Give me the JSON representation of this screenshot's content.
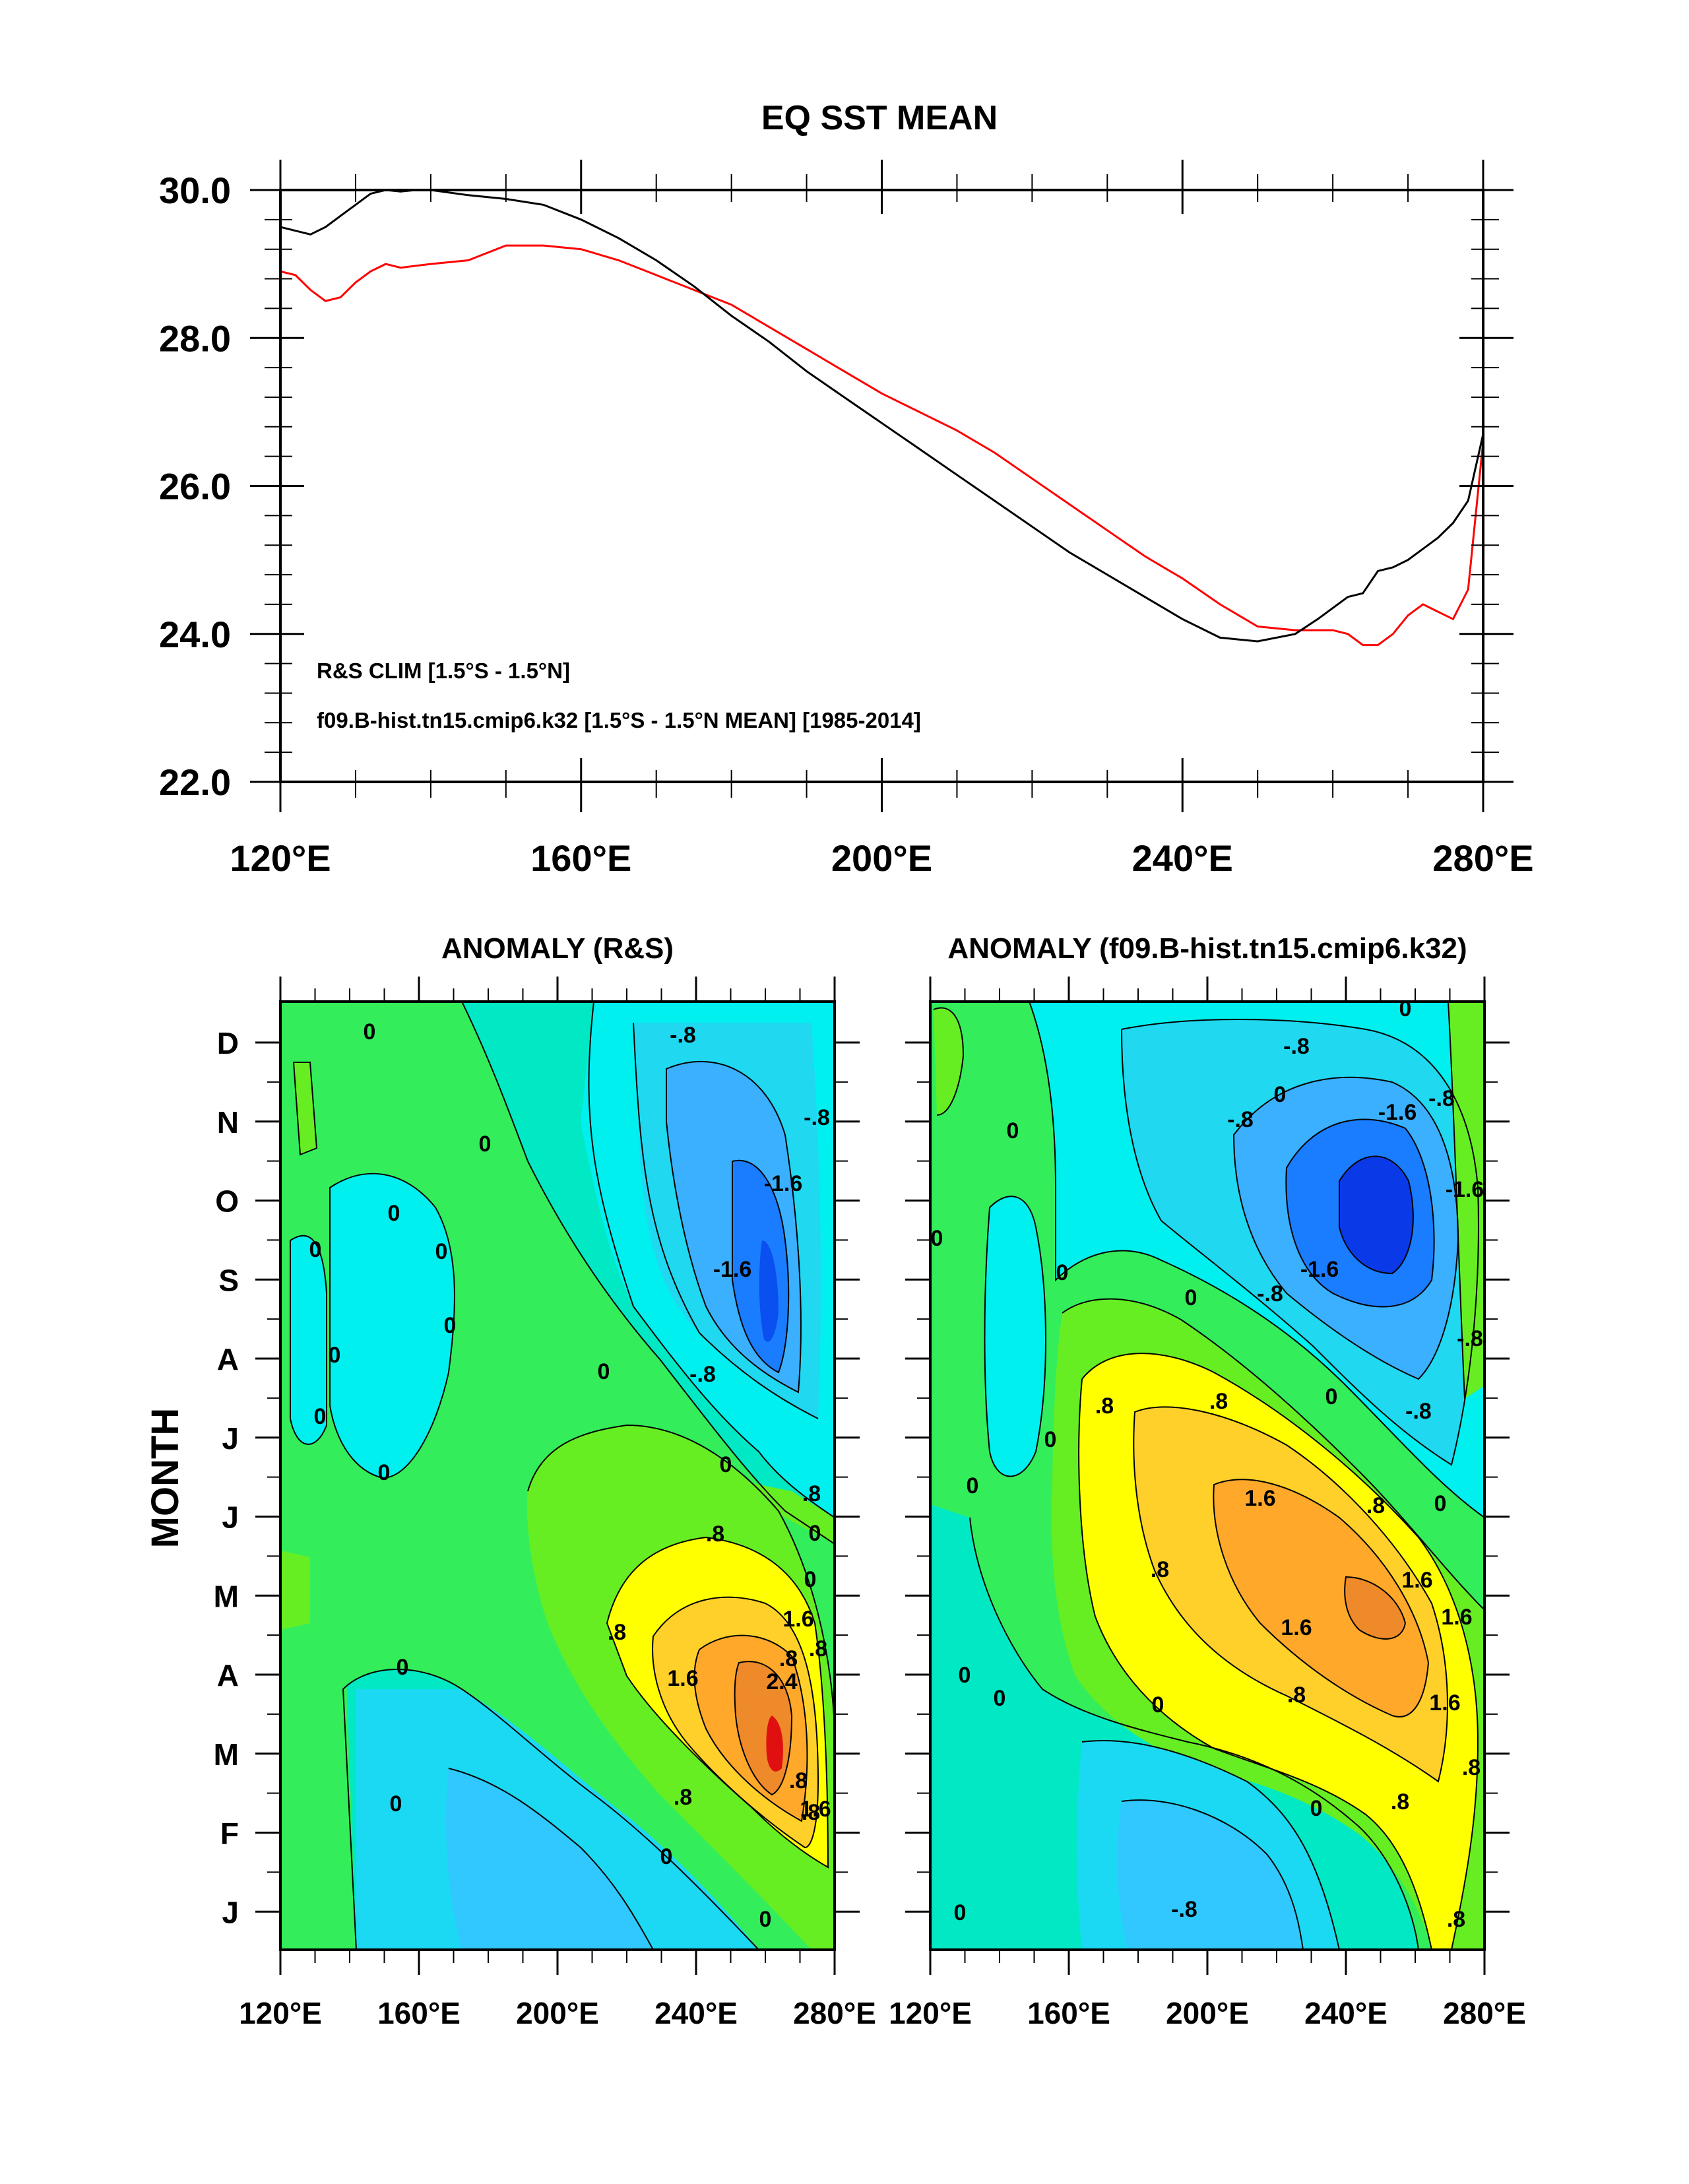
{
  "figure_title": "EQ SST MEAN",
  "chart_data": [
    {
      "type": "line",
      "title": "EQ SST MEAN",
      "xlabel": "",
      "ylabel": "",
      "xlim": [
        120,
        280
      ],
      "ylim": [
        22,
        30
      ],
      "x_tick_labels": [
        "120°E",
        "160°E",
        "200°E",
        "240°E",
        "280°E"
      ],
      "x_ticks": [
        120,
        160,
        200,
        240,
        280
      ],
      "y_tick_labels": [
        "30.0",
        "28.0",
        "26.0",
        "24.0",
        "22.0"
      ],
      "y_ticks": [
        30,
        28,
        26,
        24,
        22
      ],
      "legend_position": "bottom-left",
      "series": [
        {
          "name": "R&S CLIM [1.5°S - 1.5°N]",
          "color": "#ff0000",
          "x": [
            120,
            122,
            124,
            126,
            128,
            130,
            132,
            134,
            136,
            140,
            145,
            150,
            155,
            160,
            165,
            170,
            175,
            180,
            185,
            190,
            195,
            200,
            205,
            210,
            215,
            220,
            225,
            230,
            235,
            240,
            245,
            250,
            255,
            260,
            262,
            264,
            266,
            268,
            270,
            272,
            274,
            276,
            278,
            280
          ],
          "values": [
            28.9,
            28.85,
            28.65,
            28.5,
            28.55,
            28.75,
            28.9,
            29.0,
            28.95,
            29.0,
            29.05,
            29.25,
            29.25,
            29.2,
            29.05,
            28.85,
            28.65,
            28.45,
            28.15,
            27.85,
            27.55,
            27.25,
            27.0,
            26.75,
            26.45,
            26.1,
            25.75,
            25.4,
            25.05,
            24.75,
            24.4,
            24.1,
            24.05,
            24.05,
            24.0,
            23.85,
            23.85,
            24.0,
            24.25,
            24.4,
            24.3,
            24.2,
            24.6,
            26.6
          ]
        },
        {
          "name": "f09.B-hist.tn15.cmip6.k32 [1.5°S - 1.5°N MEAN] [1985-2014]",
          "color": "#000000",
          "x": [
            120,
            122,
            124,
            126,
            128,
            130,
            132,
            134,
            136,
            138,
            140,
            145,
            150,
            155,
            160,
            165,
            170,
            175,
            180,
            185,
            190,
            195,
            200,
            205,
            210,
            215,
            220,
            225,
            230,
            235,
            240,
            245,
            250,
            255,
            258,
            262,
            264,
            266,
            268,
            270,
            272,
            274,
            276,
            278,
            280
          ],
          "values": [
            29.5,
            29.45,
            29.4,
            29.5,
            29.65,
            29.8,
            29.95,
            30.0,
            29.98,
            30.0,
            30.0,
            29.93,
            29.88,
            29.8,
            29.6,
            29.35,
            29.05,
            28.7,
            28.3,
            27.95,
            27.55,
            27.2,
            26.85,
            26.5,
            26.15,
            25.8,
            25.45,
            25.1,
            24.8,
            24.5,
            24.2,
            23.95,
            23.9,
            24.0,
            24.2,
            24.5,
            24.55,
            24.85,
            24.9,
            25.0,
            25.15,
            25.3,
            25.5,
            25.8,
            26.7
          ]
        }
      ]
    },
    {
      "type": "heatmap",
      "title": "ANOMALY (R&S)",
      "ylabel": "MONTH",
      "xlim": [
        120,
        280
      ],
      "x_tick_labels": [
        "120°E",
        "160°E",
        "200°E",
        "240°E",
        "280°E"
      ],
      "y_tick_labels": [
        "D",
        "N",
        "O",
        "S",
        "A",
        "J",
        "J",
        "M",
        "A",
        "M",
        "F",
        "J"
      ],
      "contour_levels": [
        -2.4,
        -2.0,
        -1.6,
        -1.2,
        -0.8,
        -0.4,
        0,
        0.4,
        0.8,
        1.2,
        1.6,
        2.0,
        2.4,
        2.8
      ],
      "contour_labels": [
        "0",
        "0",
        "0",
        "0",
        "0",
        "0",
        "0",
        "0",
        "0",
        "0",
        "0",
        "0",
        "0",
        "0",
        "0",
        "0",
        "0",
        ".8",
        ".8",
        ".8",
        ".8",
        "-.8",
        "-.8",
        "-1.6",
        "-1.6",
        ".8",
        ".8",
        ".8",
        ".8",
        "1.6",
        "1.6",
        "2.4",
        "1.6",
        "-.8"
      ],
      "centers": [
        {
          "name": "cold-pool",
          "lon": 262,
          "month": 9,
          "amplitude": -2.3
        },
        {
          "name": "warm-pool",
          "lon": 263,
          "month": 3,
          "amplitude": 2.5
        }
      ]
    },
    {
      "type": "heatmap",
      "title": "ANOMALY (f09.B-hist.tn15.cmip6.k32)",
      "xlim": [
        120,
        280
      ],
      "x_tick_labels": [
        "120°E",
        "160°E",
        "200°E",
        "240°E",
        "280°E"
      ],
      "y_tick_labels": [
        "D",
        "N",
        "O",
        "S",
        "A",
        "J",
        "J",
        "M",
        "A",
        "M",
        "F",
        "J"
      ],
      "contour_levels": [
        -2.4,
        -2.0,
        -1.6,
        -1.2,
        -0.8,
        -0.4,
        0,
        0.4,
        0.8,
        1.2,
        1.6,
        2.0,
        2.4,
        2.8
      ],
      "contour_labels": [
        "0",
        "0",
        "0",
        "0",
        "0",
        "0",
        "0",
        "0",
        "0",
        "0",
        "0",
        "0",
        "0",
        "0",
        "0",
        "-.8",
        "-.8",
        "-.8",
        "-1.6",
        "-1.6",
        "-1.6",
        "-.8",
        "-.8",
        ".8",
        ".8",
        ".8",
        ".8",
        ".8",
        "1.6",
        "1.6",
        "1.6",
        "1.6",
        "1.6",
        "-.8",
        "-.8",
        ".8",
        ".8",
        ".8"
      ],
      "centers": [
        {
          "name": "cold-pool",
          "lon": 252,
          "month": 10,
          "amplitude": -2.4
        },
        {
          "name": "warm-band",
          "lon": 245,
          "month": 4.7,
          "amplitude": 2.1
        },
        {
          "name": "cold-spring",
          "lon": 200,
          "month": 1.4,
          "amplitude": -1.0
        }
      ]
    }
  ]
}
